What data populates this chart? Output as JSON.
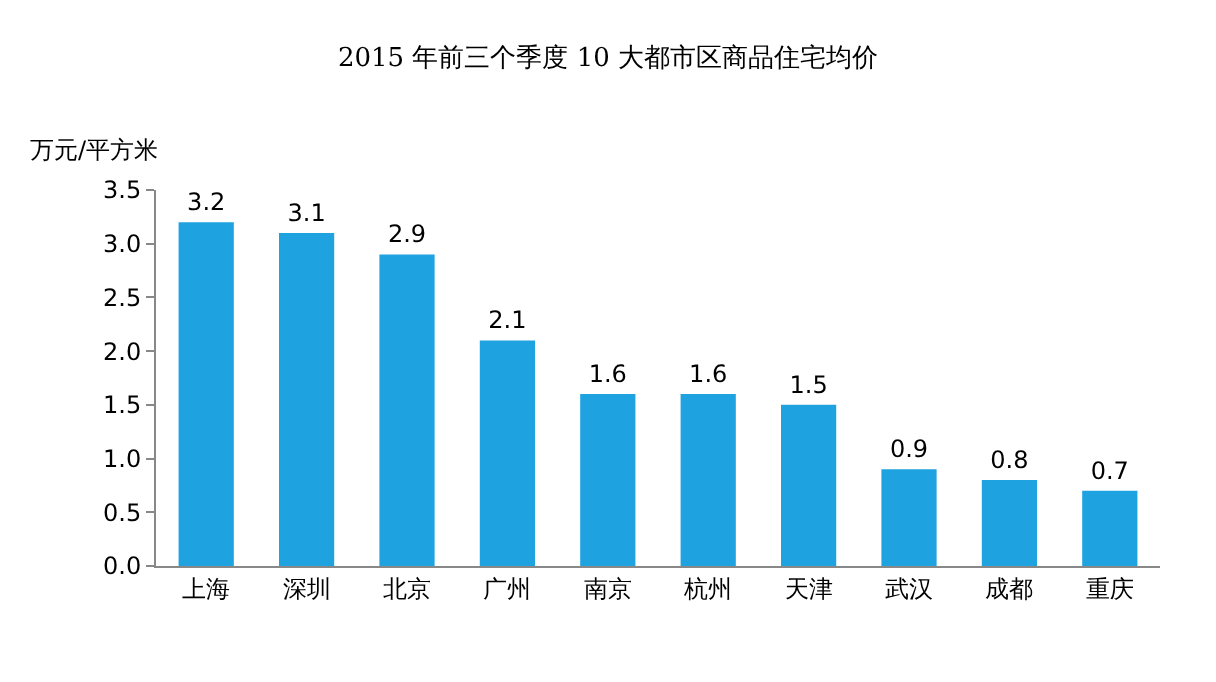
{
  "chart_data": {
    "type": "bar",
    "title": "2015 年前三个季度 10 大都市区商品住宅均价",
    "ylabel": "万元/平方米",
    "categories": [
      "上海",
      "深圳",
      "北京",
      "广州",
      "南京",
      "杭州",
      "天津",
      "武汉",
      "成都",
      "重庆"
    ],
    "values": [
      3.2,
      3.1,
      2.9,
      2.1,
      1.6,
      1.6,
      1.5,
      0.9,
      0.8,
      0.7
    ],
    "color": "#1fa2e0",
    "ylim": [
      0,
      3.5
    ],
    "yticks": [
      {
        "value": 0,
        "label": "0.0"
      },
      {
        "value": 0.5,
        "label": "0.5"
      },
      {
        "value": 1,
        "label": "1.0"
      },
      {
        "value": 1.5,
        "label": "1.5"
      },
      {
        "value": 2,
        "label": "2.0"
      },
      {
        "value": 2.5,
        "label": "2.5"
      },
      {
        "value": 3,
        "label": "3.0"
      },
      {
        "value": 3.5,
        "label": "3.5"
      }
    ],
    "data_labels": true
  }
}
